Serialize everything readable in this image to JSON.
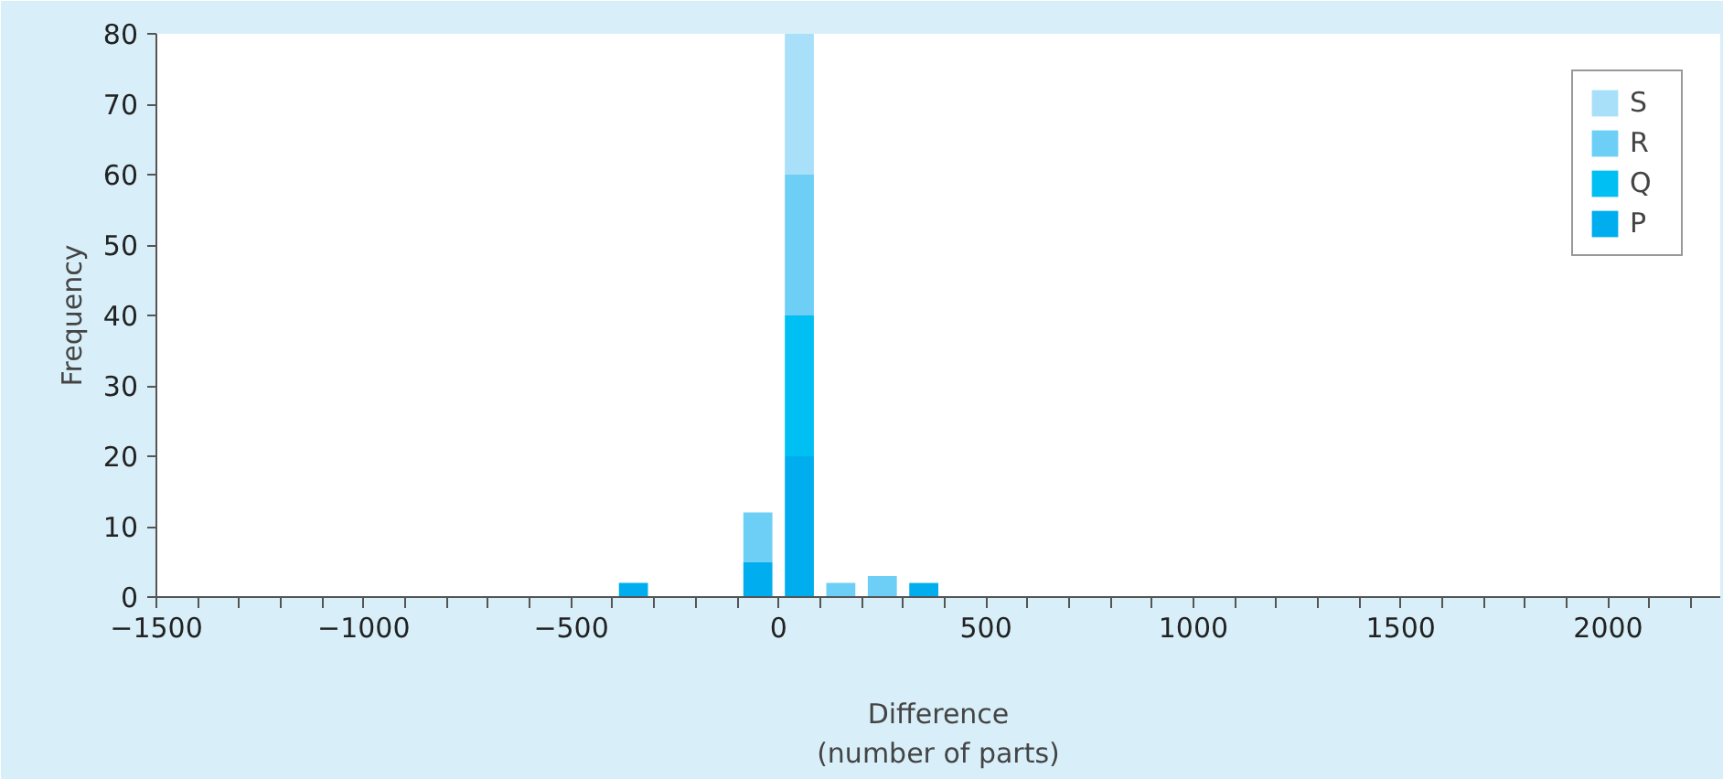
{
  "chart_data": {
    "type": "bar",
    "stacked": true,
    "xlabel": "Difference\n(number of parts)",
    "ylabel": "Frequency",
    "x": [
      -350,
      -50,
      50,
      150,
      250,
      350
    ],
    "series": [
      {
        "name": "P",
        "color": "#00aeef",
        "values": [
          2,
          5,
          20,
          0,
          0,
          2
        ]
      },
      {
        "name": "Q",
        "color": "#00bff3",
        "values": [
          0,
          0,
          20,
          0,
          0,
          0
        ]
      },
      {
        "name": "R",
        "color": "#6dcff6",
        "values": [
          0,
          7,
          20,
          2,
          3,
          0
        ]
      },
      {
        "name": "S",
        "color": "#a9e0f9",
        "values": [
          0,
          0,
          20,
          0,
          0,
          0
        ]
      }
    ],
    "xlim": [
      -1500,
      2270
    ],
    "ylim": [
      0,
      80
    ],
    "xticks": [
      -1500,
      {
        "value": -1400,
        "label": null
      },
      {
        "value": -1300,
        "label": null
      },
      {
        "value": -1200,
        "label": null
      },
      {
        "value": -1100,
        "label": null
      },
      -1000,
      {
        "value": -900,
        "label": null
      },
      {
        "value": -800,
        "label": null
      },
      {
        "value": -700,
        "label": null
      },
      {
        "value": -600,
        "label": null
      },
      -500,
      {
        "value": -400,
        "label": null
      },
      {
        "value": -300,
        "label": null
      },
      {
        "value": -200,
        "label": null
      },
      {
        "value": -100,
        "label": null
      },
      0,
      {
        "value": 100,
        "label": null
      },
      {
        "value": 200,
        "label": null
      },
      {
        "value": 300,
        "label": null
      },
      {
        "value": 400,
        "label": null
      },
      500,
      {
        "value": 600,
        "label": null
      },
      {
        "value": 700,
        "label": null
      },
      {
        "value": 800,
        "label": null
      },
      {
        "value": 900,
        "label": null
      },
      1000,
      {
        "value": 1100,
        "label": null
      },
      {
        "value": 1200,
        "label": null
      },
      {
        "value": 1300,
        "label": null
      },
      {
        "value": 1400,
        "label": null
      },
      1500,
      {
        "value": 1600,
        "label": null
      },
      {
        "value": 1700,
        "label": null
      },
      {
        "value": 1800,
        "label": null
      },
      {
        "value": 1900,
        "label": null
      },
      2000,
      {
        "value": 2100,
        "label": null
      },
      {
        "value": 2200,
        "label": null
      }
    ],
    "yticks": [
      0,
      10,
      20,
      30,
      40,
      50,
      60,
      70,
      80
    ],
    "grid": false,
    "legend": "top right"
  }
}
